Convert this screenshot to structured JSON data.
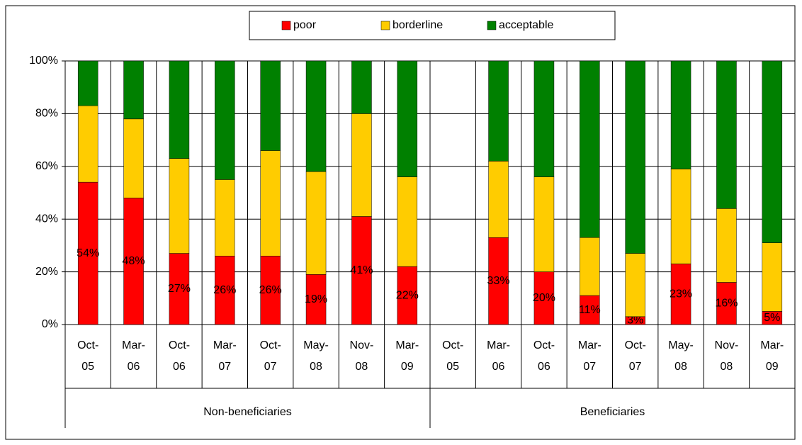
{
  "chart_data": {
    "type": "stacked-bar",
    "categories": [
      "Oct-05",
      "Mar-06",
      "Oct-06",
      "Mar-07",
      "Oct-07",
      "May-08",
      "Nov-08",
      "Mar-09",
      "Oct-05",
      "Mar-06",
      "Oct-06",
      "Mar-07",
      "Oct-07",
      "May-08",
      "Nov-08",
      "Mar-09"
    ],
    "group_labels": [
      "Non-beneficiaries",
      "Beneficiaries"
    ],
    "series": [
      {
        "name": "poor",
        "color": "#ff0000",
        "values": [
          54,
          48,
          27,
          26,
          26,
          19,
          41,
          22,
          null,
          33,
          20,
          11,
          3,
          23,
          16,
          5
        ],
        "value_labels": [
          "54%",
          "48%",
          "27%",
          "26%",
          "26%",
          "19%",
          "41%",
          "22%",
          null,
          "33%",
          "20%",
          "11%",
          "3%",
          "23%",
          "16%",
          "5%"
        ]
      },
      {
        "name": "borderline",
        "color": "#ffcc00",
        "values": [
          29,
          30,
          36,
          29,
          40,
          39,
          39,
          34,
          null,
          29,
          36,
          22,
          24,
          36,
          28,
          26
        ]
      },
      {
        "name": "acceptable",
        "color": "#008000",
        "values": [
          17,
          22,
          37,
          45,
          34,
          42,
          20,
          44,
          null,
          38,
          44,
          67,
          73,
          41,
          56,
          69
        ]
      }
    ],
    "ylim": [
      0,
      100
    ],
    "yticks": [
      {
        "value": 0,
        "label": "0%"
      },
      {
        "value": 20,
        "label": "20%"
      },
      {
        "value": 40,
        "label": "40%"
      },
      {
        "value": 60,
        "label": "60%"
      },
      {
        "value": 80,
        "label": "80%"
      },
      {
        "value": 100,
        "label": "100%"
      }
    ],
    "grid": true,
    "legend": "top"
  }
}
